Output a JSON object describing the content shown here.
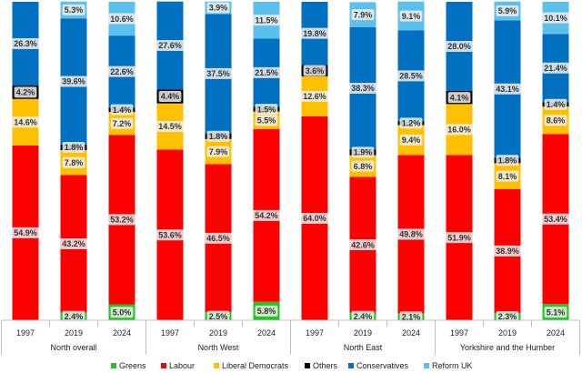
{
  "chart_data": {
    "type": "bar",
    "stacked": true,
    "percent_stacked": true,
    "ylim": [
      0,
      100
    ],
    "grid": false,
    "legend_position": "bottom",
    "categories": [
      "1997",
      "2019",
      "2024",
      "1997",
      "2019",
      "2024",
      "1997",
      "2019",
      "2024",
      "1997",
      "2019",
      "2024"
    ],
    "groups": [
      {
        "name": "North overall",
        "count": 3
      },
      {
        "name": "North West",
        "count": 3
      },
      {
        "name": "North East",
        "count": 3
      },
      {
        "name": "Yorkshire and the Humber",
        "count": 3
      }
    ],
    "series": [
      {
        "name": "Greens",
        "color": "#22c622",
        "values": [
          0.0,
          2.4,
          5.0,
          0.0,
          2.5,
          5.8,
          0.0,
          2.4,
          2.1,
          0.0,
          2.3,
          5.1
        ],
        "labels": [
          "",
          "2.4%",
          "5.0%",
          "",
          "2.5%",
          "5.8%",
          "",
          "2.4%",
          "2.1%",
          "",
          "2.3%",
          "5.1%"
        ]
      },
      {
        "name": "Labour",
        "color": "#ff0000",
        "values": [
          54.9,
          43.2,
          53.2,
          53.6,
          46.5,
          54.2,
          64.0,
          42.6,
          49.8,
          51.9,
          38.9,
          53.4
        ],
        "labels": [
          "54.9%",
          "43.2%",
          "53.2%",
          "53.6%",
          "46.5%",
          "54.2%",
          "64.0%",
          "42.6%",
          "49.8%",
          "51.9%",
          "38.9%",
          "53.4%"
        ]
      },
      {
        "name": "Liberal Democrats",
        "color": "#ffc000",
        "values": [
          14.6,
          7.8,
          7.2,
          14.5,
          7.9,
          5.5,
          12.6,
          6.8,
          9.4,
          16.0,
          8.1,
          8.6
        ],
        "labels": [
          "14.6%",
          "7.8%",
          "7.2%",
          "14.5%",
          "7.9%",
          "5.5%",
          "12.6%",
          "6.8%",
          "9.4%",
          "16.0%",
          "8.1%",
          "8.6%"
        ]
      },
      {
        "name": "Others",
        "color": "#000000",
        "values": [
          4.2,
          1.8,
          1.4,
          4.4,
          1.8,
          1.5,
          3.6,
          1.9,
          1.2,
          4.1,
          1.8,
          1.4
        ],
        "labels": [
          "4.2%",
          "1.8%",
          "1.4%",
          "4.4%",
          "1.8%",
          "1.5%",
          "3.6%",
          "1.9%",
          "1.2%",
          "4.1%",
          "1.8%",
          "1.4%"
        ]
      },
      {
        "name": "Conservatives",
        "color": "#0070c0",
        "values": [
          26.3,
          39.6,
          22.6,
          27.6,
          37.5,
          21.5,
          19.8,
          38.3,
          28.5,
          28.0,
          43.1,
          21.4
        ],
        "labels": [
          "26.3%",
          "39.6%",
          "22.6%",
          "27.6%",
          "37.5%",
          "21.5%",
          "19.8%",
          "38.3%",
          "28.5%",
          "28.0%",
          "43.1%",
          "21.4%"
        ]
      },
      {
        "name": "Reform UK",
        "color": "#5bc0eb",
        "values": [
          0.0,
          5.3,
          10.6,
          0.0,
          3.9,
          11.5,
          0.0,
          7.9,
          9.1,
          0.0,
          5.9,
          10.1
        ],
        "labels": [
          "",
          "5.3%",
          "10.6%",
          "",
          "3.9%",
          "11.5%",
          "",
          "7.9%",
          "9.1%",
          "",
          "5.9%",
          "10.1%"
        ]
      }
    ]
  }
}
